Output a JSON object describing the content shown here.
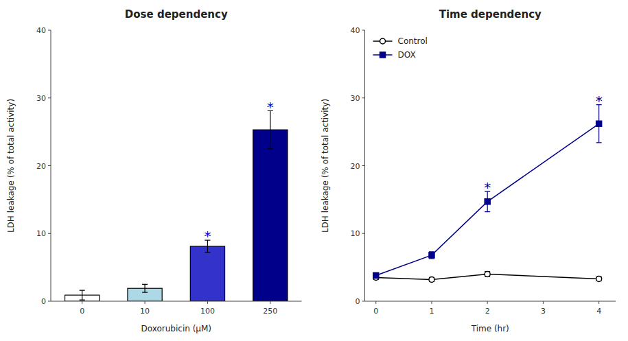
{
  "chart_data": [
    {
      "type": "bar",
      "title": "Dose dependency",
      "x_label": "Doxorubicin (μM)",
      "y_label": "LDH leakage (% of total activity)",
      "categories": [
        "0",
        "10",
        "100",
        "250"
      ],
      "values": [
        0.9,
        1.9,
        8.1,
        25.3
      ],
      "errors": [
        0.7,
        0.6,
        0.9,
        2.8
      ],
      "colors": [
        "#ffffff",
        "#add8e6",
        "#3333cc",
        "#00008b"
      ],
      "ylim": [
        0,
        40
      ],
      "yticks": [
        0,
        10,
        20,
        30,
        40
      ],
      "annotations": [
        {
          "text": "*",
          "category": "100",
          "color": "#0000cc"
        },
        {
          "text": "*",
          "category": "250",
          "color": "#0000cc"
        }
      ]
    },
    {
      "type": "line",
      "title": "Time dependency",
      "x_label": "Time (hr)",
      "y_label": "LDH leakage (% of total activity)",
      "x": [
        0,
        1,
        2,
        4
      ],
      "series": [
        {
          "name": "Control",
          "color": "#000000",
          "marker": "circle-open",
          "values": [
            3.5,
            3.2,
            4.0,
            3.3
          ],
          "errors": [
            0.3,
            0.3,
            0.4,
            0.3
          ]
        },
        {
          "name": "DOX",
          "color": "#00008b",
          "marker": "square",
          "values": [
            3.8,
            6.8,
            14.7,
            26.2
          ],
          "errors": [
            0.4,
            0.5,
            1.5,
            2.8
          ]
        }
      ],
      "xlim": [
        -0.2,
        4.3
      ],
      "xticks": [
        0,
        1,
        2,
        3,
        4
      ],
      "ylim": [
        0,
        40
      ],
      "yticks": [
        0,
        10,
        20,
        30,
        40
      ],
      "legend": "upper left",
      "annotations": [
        {
          "text": "*",
          "x": 2,
          "series": "DOX",
          "color": "#00008b"
        },
        {
          "text": "*",
          "x": 4,
          "series": "DOX",
          "color": "#00008b"
        }
      ]
    }
  ]
}
